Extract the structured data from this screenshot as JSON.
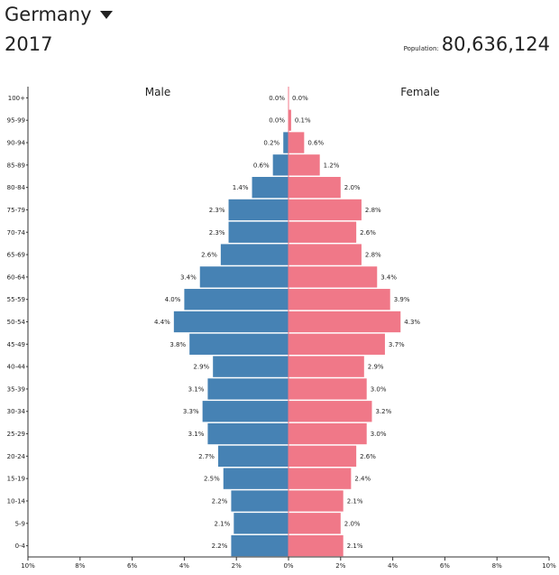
{
  "header": {
    "country": "Germany",
    "year": "2017",
    "population_label": "Population:",
    "population_value": "80,636,124"
  },
  "colors": {
    "male": "#4682b4",
    "female": "#f07888",
    "axis": "#333333"
  },
  "chart_data": {
    "type": "bar",
    "orientation": "horizontal-population-pyramid",
    "title": "",
    "male_label": "Male",
    "female_label": "Female",
    "xlim": [
      -10,
      10
    ],
    "x_ticks": [
      "10%",
      "8%",
      "6%",
      "4%",
      "2%",
      "0%",
      "2%",
      "4%",
      "6%",
      "8%",
      "10%"
    ],
    "categories": [
      "100+",
      "95-99",
      "90-94",
      "85-89",
      "80-84",
      "75-79",
      "70-74",
      "65-69",
      "60-64",
      "55-59",
      "50-54",
      "45-49",
      "40-44",
      "35-39",
      "30-34",
      "25-29",
      "20-24",
      "15-19",
      "10-14",
      "5-9",
      "0-4"
    ],
    "series": [
      {
        "name": "Male",
        "values": [
          0.0,
          0.0,
          0.2,
          0.6,
          1.4,
          2.3,
          2.3,
          2.6,
          3.4,
          4.0,
          4.4,
          3.8,
          2.9,
          3.1,
          3.3,
          3.1,
          2.7,
          2.5,
          2.2,
          2.1,
          2.2
        ],
        "labels": [
          "0.0%",
          "0.0%",
          "0.2%",
          "0.6%",
          "1.4%",
          "2.3%",
          "2.3%",
          "2.6%",
          "3.4%",
          "4.0%",
          "4.4%",
          "3.8%",
          "2.9%",
          "3.1%",
          "3.3%",
          "3.1%",
          "2.7%",
          "2.5%",
          "2.2%",
          "2.1%",
          "2.2%"
        ]
      },
      {
        "name": "Female",
        "values": [
          0.0,
          0.1,
          0.6,
          1.2,
          2.0,
          2.8,
          2.6,
          2.8,
          3.4,
          3.9,
          4.3,
          3.7,
          2.9,
          3.0,
          3.2,
          3.0,
          2.6,
          2.4,
          2.1,
          2.0,
          2.1
        ],
        "labels": [
          "0.0%",
          "0.1%",
          "0.6%",
          "1.2%",
          "2.0%",
          "2.8%",
          "2.6%",
          "2.8%",
          "3.4%",
          "3.9%",
          "4.3%",
          "3.7%",
          "2.9%",
          "3.0%",
          "3.2%",
          "3.0%",
          "2.6%",
          "2.4%",
          "2.1%",
          "2.0%",
          "2.1%"
        ]
      }
    ]
  }
}
